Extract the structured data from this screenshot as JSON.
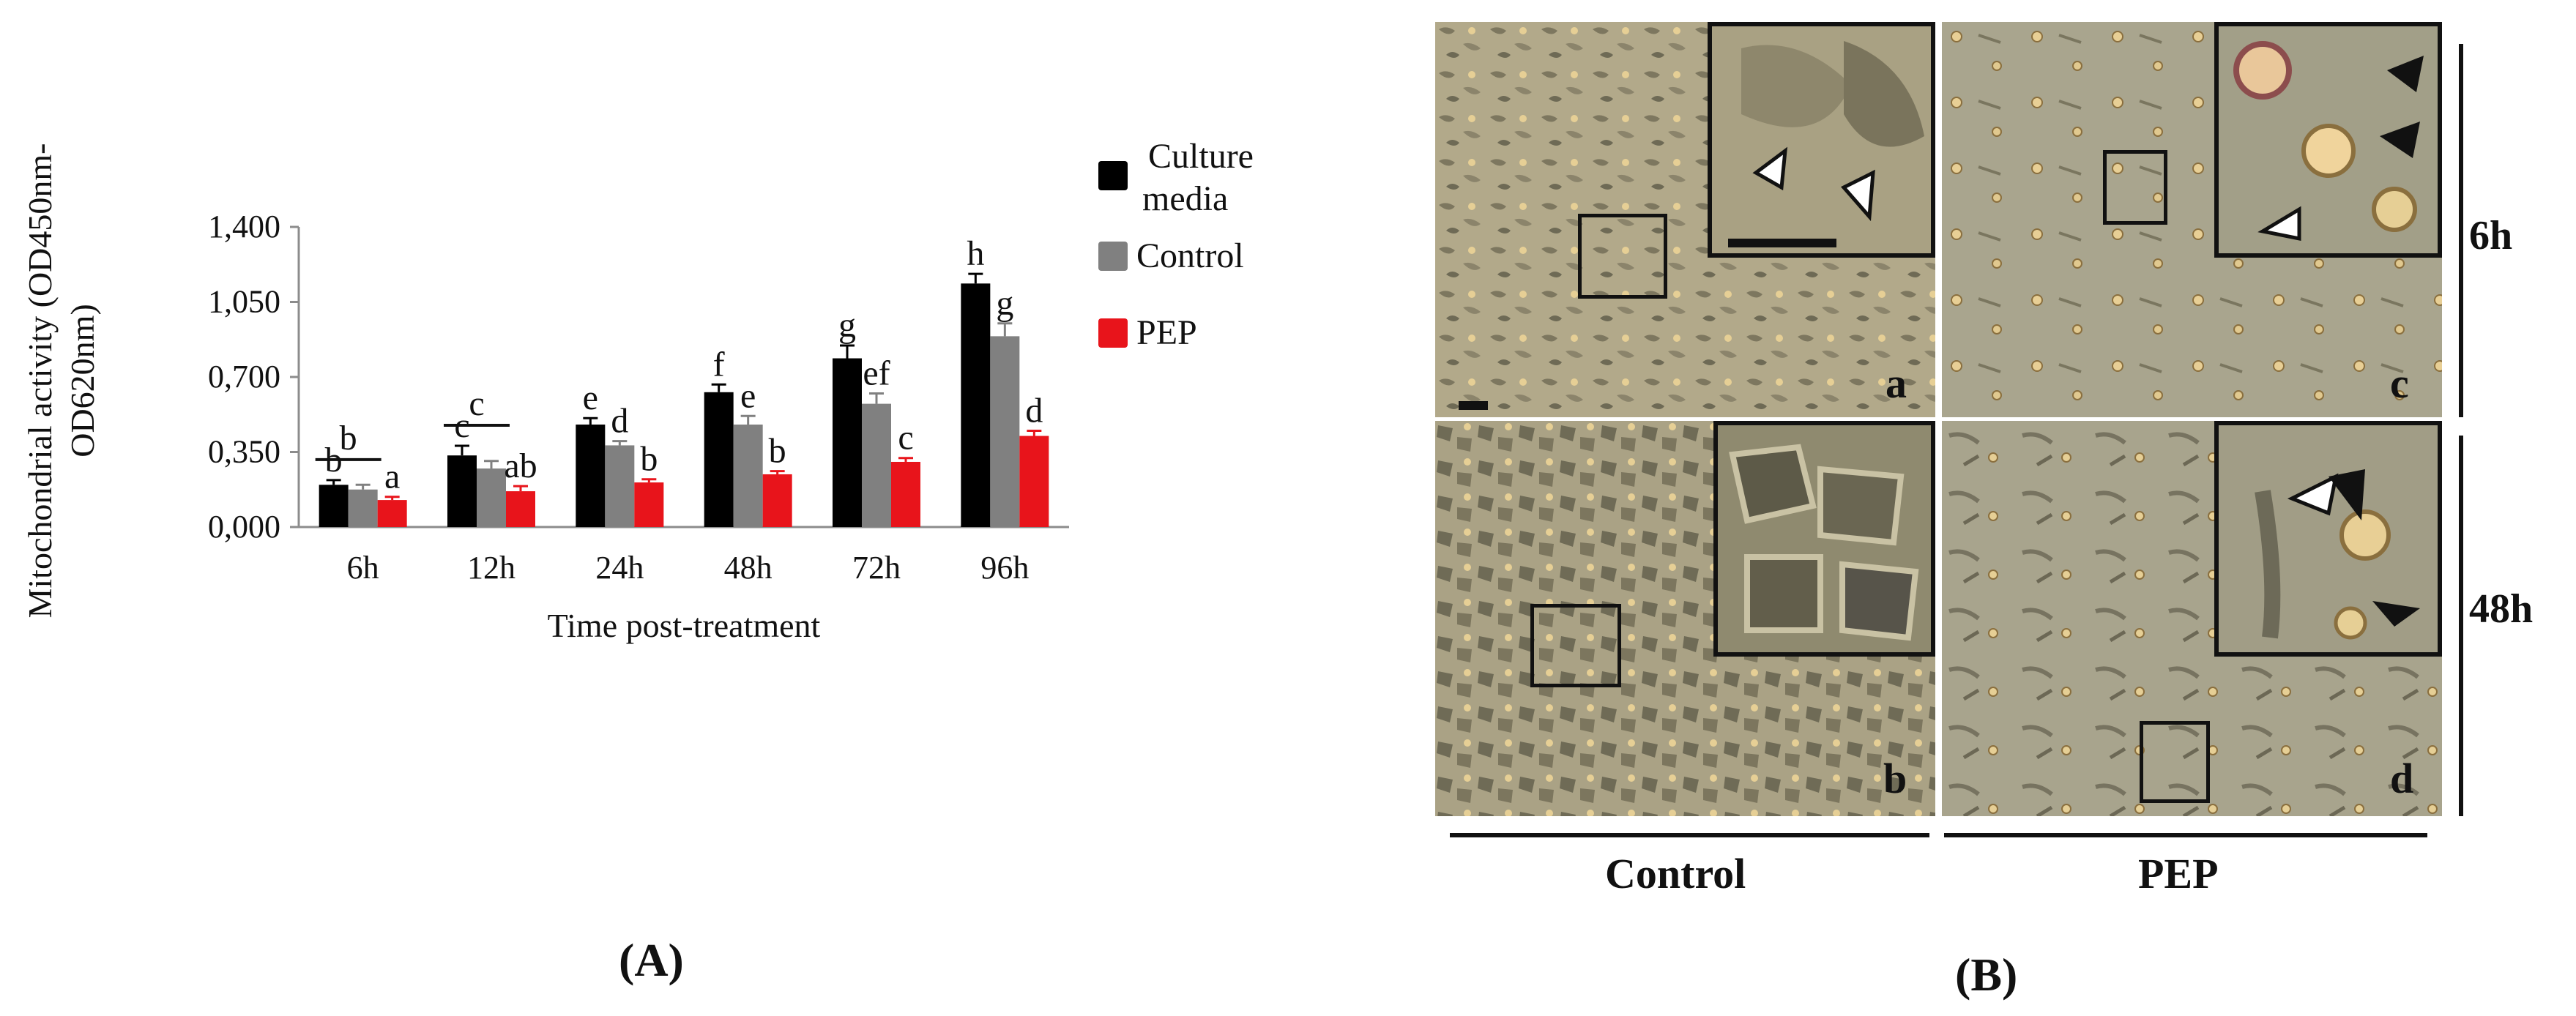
{
  "chart_data": {
    "type": "bar",
    "categories": [
      "6h",
      "12h",
      "24h",
      "48h",
      "72h",
      "96h"
    ],
    "series": [
      {
        "name": "Culture media",
        "color": "#000000",
        "values": [
          0.197,
          0.334,
          0.478,
          0.629,
          0.787,
          1.136
        ],
        "errors": [
          0.022,
          0.045,
          0.03,
          0.036,
          0.06,
          0.045
        ],
        "letters": [
          "b",
          "c",
          "e",
          "f",
          "g",
          "h"
        ]
      },
      {
        "name": "Control",
        "color": "#808080",
        "values": [
          0.175,
          0.273,
          0.381,
          0.478,
          0.575,
          0.89
        ],
        "errors": [
          0.022,
          0.035,
          0.02,
          0.04,
          0.048,
          0.06
        ],
        "letters": [
          "",
          "",
          "d",
          "e",
          "ef",
          "g"
        ]
      },
      {
        "name": "PEP",
        "color": "#e8141b",
        "values": [
          0.126,
          0.167,
          0.208,
          0.246,
          0.304,
          0.425
        ],
        "errors": [
          0.015,
          0.024,
          0.015,
          0.015,
          0.018,
          0.024
        ],
        "letters": [
          "a",
          "ab",
          "b",
          "b",
          "c",
          "d"
        ]
      }
    ],
    "group_bars": [
      {
        "category": "6h",
        "letter": "b"
      },
      {
        "category": "12h",
        "letter": "c"
      }
    ],
    "yticks": [
      "0,000",
      "0,350",
      "0,700",
      "1,050",
      "1,400"
    ],
    "ylim": [
      0,
      1.4
    ],
    "ylabel_line1": "Mitochondrial activity (OD450nm-",
    "ylabel_line2": "OD620nm)",
    "xlabel": "Time post-treatment",
    "legend_position": "top-right",
    "legend_entries": [
      {
        "line1": "Culture",
        "line2": "media",
        "color": "#000000"
      },
      {
        "line1": "Control",
        "line2": "",
        "color": "#808080"
      },
      {
        "line1": "PEP",
        "line2": "",
        "color": "#e8141b"
      }
    ],
    "grid": false
  },
  "panel_a_label": "(A)",
  "panel_b": {
    "label": "(B)",
    "images": [
      {
        "letter": "a"
      },
      {
        "letter": "b"
      },
      {
        "letter": "c"
      },
      {
        "letter": "d"
      }
    ],
    "timepoints": [
      "6h",
      "48h"
    ],
    "groups": [
      "Control",
      "PEP"
    ]
  },
  "colors": {
    "micro_bg": "#b3a98a",
    "border": "#111111"
  }
}
